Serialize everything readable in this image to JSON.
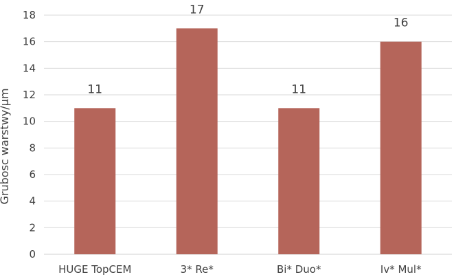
{
  "chart_data": {
    "type": "bar",
    "title": "",
    "xlabel": "",
    "ylabel": "Grubosc warstwy/μm",
    "categories": [
      "HUGE TopCEM",
      "3* Re*",
      "Bi* Duo*",
      "Iv* Mul*"
    ],
    "values": [
      11,
      17,
      11,
      16
    ],
    "data_labels": [
      "11",
      "17",
      "11",
      "16"
    ],
    "y_ticks": [
      "0",
      "2",
      "4",
      "6",
      "8",
      "10",
      "12",
      "14",
      "16",
      "18"
    ],
    "ylim": [
      0,
      18
    ],
    "grid": true,
    "legend": "none",
    "bar_color": "#b5655a",
    "grid_color": "#d9d9d9"
  }
}
